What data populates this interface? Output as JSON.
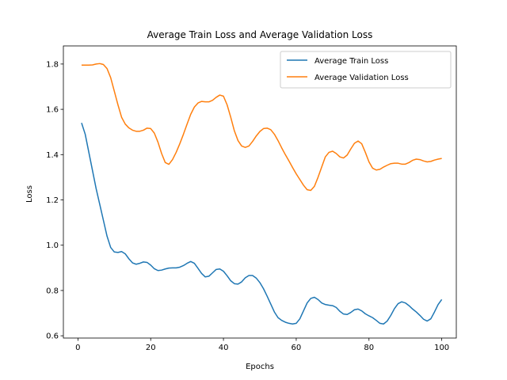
{
  "chart_data": {
    "type": "line",
    "title": "Average Train Loss and Average Validation Loss",
    "xlabel": "Epochs",
    "ylabel": "Loss",
    "xlim": [
      -4,
      104
    ],
    "ylim": [
      0.59,
      1.88
    ],
    "xticks": [
      0,
      20,
      40,
      60,
      80,
      100
    ],
    "yticks": [
      0.6,
      0.8,
      1.0,
      1.2,
      1.4,
      1.6,
      1.8
    ],
    "xtick_labels": [
      "0",
      "20",
      "40",
      "60",
      "80",
      "100"
    ],
    "ytick_labels": [
      "0.6",
      "0.8",
      "1.0",
      "1.2",
      "1.4",
      "1.6",
      "1.8"
    ],
    "grid": false,
    "legend_position": "top-right",
    "series": [
      {
        "name": "Average Train Loss",
        "color": "#1f77b4",
        "points": [
          [
            1,
            1.54
          ],
          [
            2,
            1.49
          ],
          [
            3,
            1.41
          ],
          [
            4,
            1.33
          ],
          [
            5,
            1.25
          ],
          [
            6,
            1.18
          ],
          [
            7,
            1.11
          ],
          [
            8,
            1.04
          ],
          [
            9,
            0.99
          ],
          [
            10,
            0.97
          ],
          [
            11,
            0.968
          ],
          [
            12,
            0.972
          ],
          [
            13,
            0.962
          ],
          [
            14,
            0.94
          ],
          [
            15,
            0.922
          ],
          [
            16,
            0.916
          ],
          [
            17,
            0.92
          ],
          [
            18,
            0.926
          ],
          [
            19,
            0.924
          ],
          [
            20,
            0.912
          ],
          [
            21,
            0.896
          ],
          [
            22,
            0.888
          ],
          [
            23,
            0.89
          ],
          [
            24,
            0.895
          ],
          [
            25,
            0.899
          ],
          [
            26,
            0.9
          ],
          [
            27,
            0.9
          ],
          [
            28,
            0.903
          ],
          [
            29,
            0.91
          ],
          [
            30,
            0.92
          ],
          [
            31,
            0.928
          ],
          [
            32,
            0.92
          ],
          [
            33,
            0.898
          ],
          [
            34,
            0.875
          ],
          [
            35,
            0.86
          ],
          [
            36,
            0.863
          ],
          [
            37,
            0.878
          ],
          [
            38,
            0.893
          ],
          [
            39,
            0.895
          ],
          [
            40,
            0.885
          ],
          [
            41,
            0.865
          ],
          [
            42,
            0.843
          ],
          [
            43,
            0.83
          ],
          [
            44,
            0.828
          ],
          [
            45,
            0.838
          ],
          [
            46,
            0.856
          ],
          [
            47,
            0.866
          ],
          [
            48,
            0.866
          ],
          [
            49,
            0.855
          ],
          [
            50,
            0.835
          ],
          [
            51,
            0.808
          ],
          [
            52,
            0.775
          ],
          [
            53,
            0.74
          ],
          [
            54,
            0.705
          ],
          [
            55,
            0.68
          ],
          [
            56,
            0.668
          ],
          [
            57,
            0.66
          ],
          [
            58,
            0.655
          ],
          [
            59,
            0.652
          ],
          [
            60,
            0.655
          ],
          [
            61,
            0.675
          ],
          [
            62,
            0.71
          ],
          [
            63,
            0.745
          ],
          [
            64,
            0.765
          ],
          [
            65,
            0.77
          ],
          [
            66,
            0.76
          ],
          [
            67,
            0.745
          ],
          [
            68,
            0.738
          ],
          [
            69,
            0.735
          ],
          [
            70,
            0.733
          ],
          [
            71,
            0.725
          ],
          [
            72,
            0.708
          ],
          [
            73,
            0.696
          ],
          [
            74,
            0.694
          ],
          [
            75,
            0.703
          ],
          [
            76,
            0.715
          ],
          [
            77,
            0.718
          ],
          [
            78,
            0.71
          ],
          [
            79,
            0.697
          ],
          [
            80,
            0.688
          ],
          [
            81,
            0.68
          ],
          [
            82,
            0.668
          ],
          [
            83,
            0.655
          ],
          [
            84,
            0.652
          ],
          [
            85,
            0.665
          ],
          [
            86,
            0.69
          ],
          [
            87,
            0.72
          ],
          [
            88,
            0.742
          ],
          [
            89,
            0.75
          ],
          [
            90,
            0.745
          ],
          [
            91,
            0.733
          ],
          [
            92,
            0.718
          ],
          [
            93,
            0.705
          ],
          [
            94,
            0.69
          ],
          [
            95,
            0.673
          ],
          [
            96,
            0.665
          ],
          [
            97,
            0.675
          ],
          [
            98,
            0.705
          ],
          [
            99,
            0.738
          ],
          [
            100,
            0.76
          ]
        ]
      },
      {
        "name": "Average Validation Loss",
        "color": "#ff7f0e",
        "points": [
          [
            1,
            1.795
          ],
          [
            2,
            1.795
          ],
          [
            3,
            1.795
          ],
          [
            4,
            1.796
          ],
          [
            5,
            1.8
          ],
          [
            6,
            1.802
          ],
          [
            7,
            1.798
          ],
          [
            8,
            1.78
          ],
          [
            9,
            1.74
          ],
          [
            10,
            1.68
          ],
          [
            11,
            1.62
          ],
          [
            12,
            1.565
          ],
          [
            13,
            1.535
          ],
          [
            14,
            1.518
          ],
          [
            15,
            1.508
          ],
          [
            16,
            1.503
          ],
          [
            17,
            1.503
          ],
          [
            18,
            1.508
          ],
          [
            19,
            1.517
          ],
          [
            20,
            1.515
          ],
          [
            21,
            1.495
          ],
          [
            22,
            1.455
          ],
          [
            23,
            1.405
          ],
          [
            24,
            1.365
          ],
          [
            25,
            1.357
          ],
          [
            26,
            1.378
          ],
          [
            27,
            1.41
          ],
          [
            28,
            1.448
          ],
          [
            29,
            1.49
          ],
          [
            30,
            1.535
          ],
          [
            31,
            1.578
          ],
          [
            32,
            1.61
          ],
          [
            33,
            1.628
          ],
          [
            34,
            1.635
          ],
          [
            35,
            1.633
          ],
          [
            36,
            1.633
          ],
          [
            37,
            1.64
          ],
          [
            38,
            1.653
          ],
          [
            39,
            1.663
          ],
          [
            40,
            1.658
          ],
          [
            41,
            1.62
          ],
          [
            42,
            1.565
          ],
          [
            43,
            1.505
          ],
          [
            44,
            1.462
          ],
          [
            45,
            1.438
          ],
          [
            46,
            1.432
          ],
          [
            47,
            1.438
          ],
          [
            48,
            1.458
          ],
          [
            49,
            1.482
          ],
          [
            50,
            1.502
          ],
          [
            51,
            1.515
          ],
          [
            52,
            1.517
          ],
          [
            53,
            1.51
          ],
          [
            54,
            1.49
          ],
          [
            55,
            1.462
          ],
          [
            56,
            1.43
          ],
          [
            57,
            1.4
          ],
          [
            58,
            1.372
          ],
          [
            59,
            1.343
          ],
          [
            60,
            1.315
          ],
          [
            61,
            1.29
          ],
          [
            62,
            1.265
          ],
          [
            63,
            1.245
          ],
          [
            64,
            1.242
          ],
          [
            65,
            1.26
          ],
          [
            66,
            1.3
          ],
          [
            67,
            1.345
          ],
          [
            68,
            1.39
          ],
          [
            69,
            1.41
          ],
          [
            70,
            1.415
          ],
          [
            71,
            1.405
          ],
          [
            72,
            1.39
          ],
          [
            73,
            1.385
          ],
          [
            74,
            1.398
          ],
          [
            75,
            1.425
          ],
          [
            76,
            1.45
          ],
          [
            77,
            1.46
          ],
          [
            78,
            1.448
          ],
          [
            79,
            1.41
          ],
          [
            80,
            1.368
          ],
          [
            81,
            1.34
          ],
          [
            82,
            1.332
          ],
          [
            83,
            1.335
          ],
          [
            84,
            1.345
          ],
          [
            85,
            1.353
          ],
          [
            86,
            1.36
          ],
          [
            87,
            1.362
          ],
          [
            88,
            1.362
          ],
          [
            89,
            1.358
          ],
          [
            90,
            1.358
          ],
          [
            91,
            1.365
          ],
          [
            92,
            1.375
          ],
          [
            93,
            1.38
          ],
          [
            94,
            1.378
          ],
          [
            95,
            1.372
          ],
          [
            96,
            1.368
          ],
          [
            97,
            1.37
          ],
          [
            98,
            1.376
          ],
          [
            99,
            1.38
          ],
          [
            100,
            1.383
          ]
        ]
      }
    ]
  }
}
